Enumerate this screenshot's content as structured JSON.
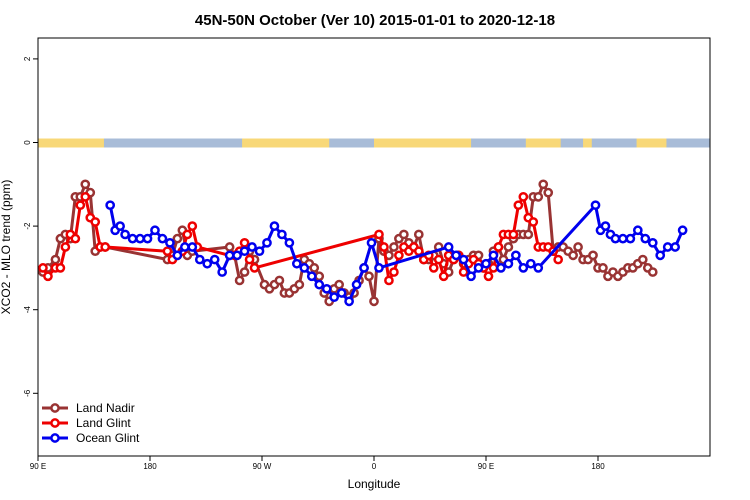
{
  "chart_data": {
    "type": "line",
    "title": "45N-50N October (Ver 10)   2015-01-01 to 2020-12-18",
    "xlabel": "Longitude",
    "ylabel": "XCO2 - MLO trend (ppm)",
    "xlim": [
      0,
      540
    ],
    "ylim": [
      -7.5,
      2.5
    ],
    "x_ticks": [
      {
        "value": 0,
        "label": "90 E"
      },
      {
        "value": 90,
        "label": "180"
      },
      {
        "value": 180,
        "label": "90 W"
      },
      {
        "value": 270,
        "label": "0"
      },
      {
        "value": 360,
        "label": "90 E"
      },
      {
        "value": 450,
        "label": "180"
      }
    ],
    "y_ticks": [
      {
        "value": 2,
        "label": "2"
      },
      {
        "value": 0,
        "label": "0"
      },
      {
        "value": -2,
        "label": "-2"
      },
      {
        "value": -4,
        "label": "-4"
      },
      {
        "value": -6,
        "label": "-6"
      }
    ],
    "legend_position": "bottom-left",
    "land_ocean_strip": {
      "y": 0,
      "land_color": "#f8d878",
      "ocean_color": "#a8bcd8",
      "land_segments": [
        [
          0,
          53
        ],
        [
          164,
          234
        ],
        [
          270,
          348
        ],
        [
          392,
          420
        ],
        [
          438,
          445
        ],
        [
          481,
          505
        ]
      ]
    },
    "series": [
      {
        "name": "Land Nadir",
        "color": "#993333",
        "x": [
          4,
          8,
          14,
          18,
          22,
          26,
          30,
          34,
          38,
          42,
          46,
          50,
          54,
          104,
          108,
          112,
          116,
          120,
          124,
          154,
          158,
          162,
          166,
          170,
          174,
          182,
          186,
          190,
          194,
          198,
          202,
          206,
          210,
          214,
          218,
          222,
          226,
          230,
          234,
          238,
          242,
          246,
          250,
          254,
          258,
          262,
          266,
          270,
          274,
          278,
          282,
          286,
          290,
          294,
          298,
          302,
          306,
          310,
          314,
          318,
          322,
          326,
          330,
          334,
          338,
          342,
          346,
          350,
          354,
          358,
          362,
          366,
          370,
          374,
          378,
          382,
          386,
          390,
          394,
          398,
          402,
          406,
          410,
          414,
          418,
          422,
          426,
          430,
          434,
          438,
          442,
          446,
          450,
          454,
          458,
          462,
          466,
          470,
          474,
          478,
          482,
          486,
          490,
          494
        ],
        "y": [
          -3.1,
          -3.0,
          -2.8,
          -2.3,
          -2.2,
          -2.3,
          -1.3,
          -1.3,
          -1.0,
          -1.2,
          -2.6,
          -2.5,
          -2.5,
          -2.8,
          -2.7,
          -2.3,
          -2.1,
          -2.7,
          -2.6,
          -2.5,
          -2.7,
          -3.3,
          -3.1,
          -2.6,
          -2.8,
          -3.4,
          -3.5,
          -3.4,
          -3.3,
          -3.6,
          -3.6,
          -3.5,
          -3.4,
          -2.8,
          -2.9,
          -3.0,
          -3.2,
          -3.6,
          -3.8,
          -3.5,
          -3.4,
          -3.6,
          -3.7,
          -3.6,
          -3.3,
          -3.0,
          -3.2,
          -3.8,
          -2.3,
          -2.6,
          -2.7,
          -2.5,
          -2.3,
          -2.2,
          -2.4,
          -2.5,
          -2.2,
          -2.8,
          -2.8,
          -2.7,
          -2.5,
          -2.9,
          -3.1,
          -2.8,
          -2.7,
          -2.9,
          -2.8,
          -2.7,
          -2.7,
          -3.0,
          -2.9,
          -2.6,
          -2.5,
          -2.8,
          -2.5,
          -2.3,
          -2.2,
          -2.2,
          -2.2,
          -1.3,
          -1.3,
          -1.0,
          -1.2,
          -2.6,
          -2.5,
          -2.5,
          -2.6,
          -2.7,
          -2.5,
          -2.8,
          -2.8,
          -2.7,
          -3.0,
          -3.0,
          -3.2,
          -3.1,
          -3.2,
          -3.1,
          -3.0,
          -3.0,
          -2.9,
          -2.8,
          -3.0,
          -3.1
        ]
      },
      {
        "name": "Land Glint",
        "color": "#ee0000",
        "x": [
          4,
          8,
          14,
          18,
          22,
          26,
          30,
          34,
          38,
          42,
          46,
          50,
          54,
          104,
          108,
          112,
          116,
          120,
          124,
          128,
          154,
          158,
          162,
          166,
          170,
          174,
          274,
          278,
          282,
          286,
          290,
          294,
          298,
          302,
          306,
          310,
          314,
          318,
          322,
          326,
          330,
          334,
          338,
          342,
          346,
          350,
          354,
          358,
          362,
          366,
          370,
          374,
          378,
          382,
          386,
          390,
          394,
          398,
          402,
          406,
          410,
          414,
          418
        ],
        "y": [
          -3.0,
          -3.2,
          -3.0,
          -3.0,
          -2.5,
          -2.2,
          -2.3,
          -1.5,
          -1.3,
          -1.8,
          -1.9,
          -2.5,
          -2.5,
          -2.6,
          -2.8,
          -2.7,
          -2.6,
          -2.2,
          -2.0,
          -2.5,
          -2.7,
          -2.7,
          -2.6,
          -2.4,
          -2.8,
          -3.0,
          -2.2,
          -2.5,
          -3.3,
          -3.1,
          -2.7,
          -2.5,
          -2.6,
          -2.5,
          -2.6,
          -2.8,
          -2.7,
          -3.0,
          -2.8,
          -3.2,
          -2.7,
          -2.8,
          -2.7,
          -3.1,
          -2.9,
          -2.8,
          -2.9,
          -3.0,
          -3.2,
          -3.0,
          -2.5,
          -2.2,
          -2.2,
          -2.2,
          -1.5,
          -1.3,
          -1.8,
          -1.9,
          -2.5,
          -2.5,
          -2.5,
          -2.6,
          -2.8
        ]
      },
      {
        "name": "Ocean Glint",
        "color": "#0000ee",
        "x": [
          58,
          62,
          66,
          70,
          76,
          82,
          88,
          94,
          100,
          106,
          112,
          118,
          124,
          130,
          136,
          142,
          148,
          154,
          160,
          166,
          172,
          178,
          184,
          190,
          196,
          202,
          208,
          214,
          220,
          226,
          232,
          238,
          244,
          250,
          256,
          262,
          268,
          274,
          330,
          336,
          342,
          348,
          354,
          360,
          366,
          372,
          378,
          384,
          390,
          396,
          402,
          448,
          452,
          456,
          460,
          464,
          470,
          476,
          482,
          488,
          494,
          500,
          506,
          512,
          518
        ],
        "y": [
          -1.5,
          -2.1,
          -2.0,
          -2.2,
          -2.3,
          -2.3,
          -2.3,
          -2.1,
          -2.3,
          -2.4,
          -2.7,
          -2.5,
          -2.5,
          -2.8,
          -2.9,
          -2.8,
          -3.1,
          -2.7,
          -2.7,
          -2.6,
          -2.5,
          -2.6,
          -2.4,
          -2.0,
          -2.2,
          -2.4,
          -2.9,
          -3.0,
          -3.2,
          -3.4,
          -3.5,
          -3.7,
          -3.6,
          -3.8,
          -3.4,
          -3.0,
          -2.4,
          -3.0,
          -2.5,
          -2.7,
          -2.8,
          -3.2,
          -3.0,
          -2.9,
          -2.7,
          -3.0,
          -2.9,
          -2.7,
          -3.0,
          -2.9,
          -3.0,
          -1.5,
          -2.1,
          -2.0,
          -2.2,
          -2.3,
          -2.3,
          -2.3,
          -2.1,
          -2.3,
          -2.4,
          -2.7,
          -2.5,
          -2.5,
          -2.1
        ]
      }
    ]
  }
}
